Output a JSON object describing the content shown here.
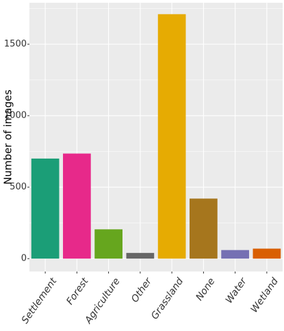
{
  "chart_data": {
    "type": "bar",
    "title": "",
    "xlabel": "",
    "ylabel": "Number of images",
    "categories": [
      "Settlement",
      "Forest",
      "Agriculture",
      "Other",
      "Grassland",
      "None",
      "Water",
      "Wetland"
    ],
    "values": [
      700,
      735,
      205,
      40,
      1710,
      420,
      60,
      70
    ],
    "colors": [
      "#1b9e77",
      "#e7298a",
      "#66a61e",
      "#666666",
      "#e6ab02",
      "#a6761d",
      "#7570b3",
      "#d95f02"
    ],
    "ylim": [
      -90,
      1790
    ],
    "yticks": [
      0,
      500,
      1000,
      1500
    ],
    "grid": true,
    "panel_background": "#ebebeb",
    "grid_color": "#ffffff"
  }
}
